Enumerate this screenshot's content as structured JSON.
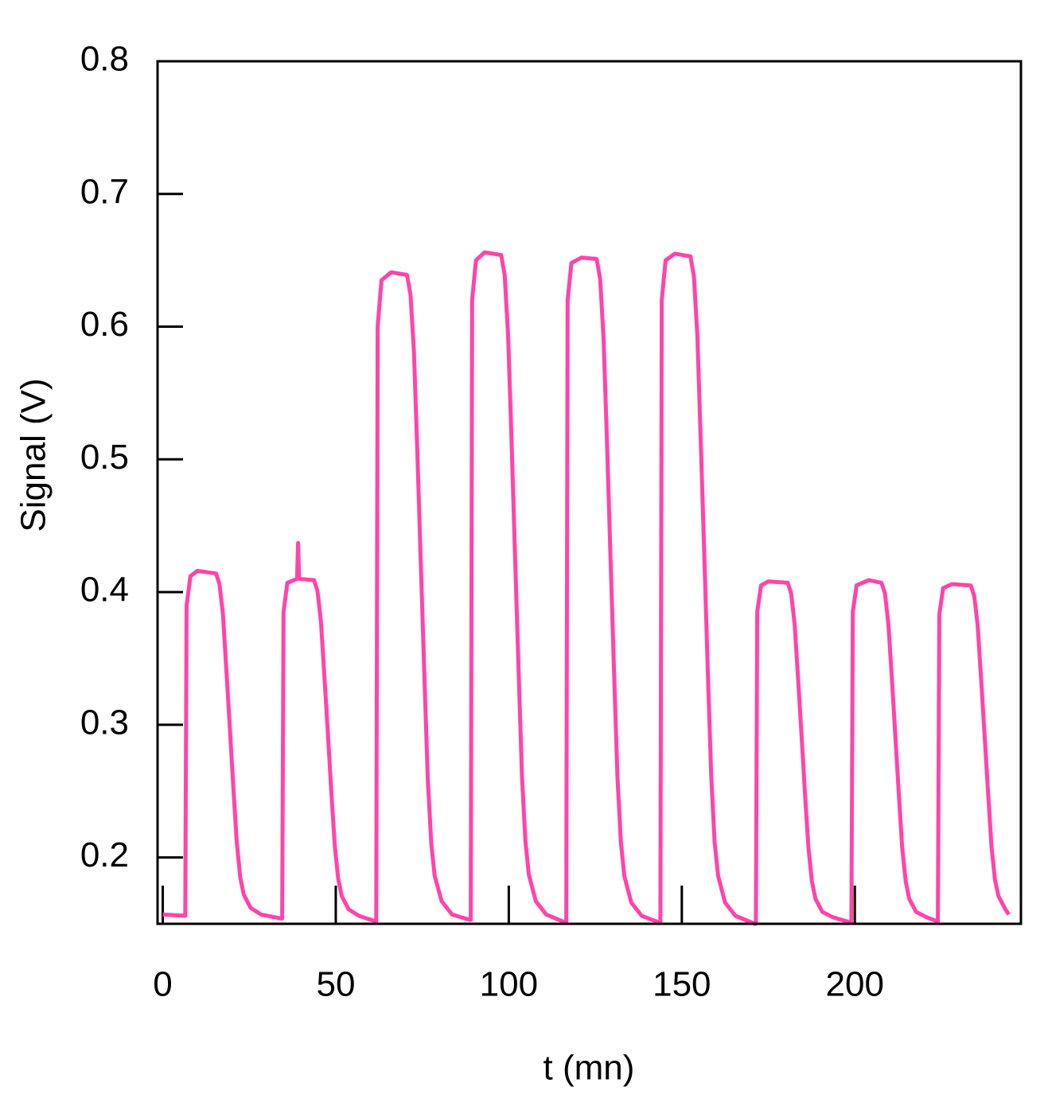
{
  "chart_data": {
    "type": "line",
    "xlabel": "t (mn)",
    "ylabel": "Signal (V)",
    "xlim": [
      -1.5,
      248
    ],
    "ylim": [
      0.15,
      0.8
    ],
    "xticks": [
      0,
      50,
      100,
      150,
      200
    ],
    "yticks": [
      0.2,
      0.3,
      0.4,
      0.5,
      0.6,
      0.7,
      0.8
    ],
    "series": [
      {
        "color": "#ff44aa",
        "x": [
          0,
          6.5,
          6.9,
          8,
          10,
          15.4,
          16.4,
          17.4,
          18.4,
          19.4,
          20.4,
          21.4,
          22.4,
          23.4,
          25.4,
          28.4,
          34.2,
          34.5,
          34.9,
          36,
          38.8,
          39.1,
          39.4,
          43.7,
          44.7,
          45.7,
          46.7,
          47.7,
          48.7,
          49.7,
          50.7,
          51.7,
          53.7,
          56.7,
          61.4,
          61.7,
          62.1,
          63.2,
          66,
          70.6,
          71.6,
          72.6,
          73.6,
          74.6,
          75.6,
          76.6,
          77.6,
          78.6,
          80.6,
          83.6,
          88.7,
          89,
          89.4,
          90.5,
          93,
          97.8,
          98.8,
          99.8,
          100.8,
          101.8,
          102.8,
          103.8,
          104.8,
          105.8,
          107.8,
          110.8,
          116.3,
          116.6,
          117,
          118.1,
          121,
          125.4,
          126.4,
          127.4,
          128.4,
          129.4,
          130.4,
          131.4,
          132.4,
          133.4,
          135.4,
          138.4,
          143.5,
          143.8,
          144.2,
          145.3,
          148,
          152.5,
          153.5,
          154.5,
          155.5,
          156.5,
          157.5,
          158.5,
          159.5,
          160.5,
          162.5,
          165.5,
          171.1,
          171.4,
          171.8,
          172.9,
          175,
          180.6,
          181.6,
          182.6,
          183.6,
          184.6,
          185.6,
          186.6,
          187.6,
          188.6,
          190.6,
          193.6,
          198.7,
          199,
          199.4,
          200.5,
          204,
          207.7,
          208.7,
          209.7,
          210.7,
          211.7,
          212.7,
          213.7,
          214.7,
          215.7,
          217.7,
          220.7,
          223.7,
          224,
          224.4,
          225.5,
          228,
          233.5,
          234.5,
          235.5,
          236.5,
          237.5,
          238.5,
          239.5,
          240.5,
          241.5,
          243.5,
          244.5
        ],
        "values": [
          0.157,
          0.156,
          0.39,
          0.412,
          0.416,
          0.414,
          0.406,
          0.383,
          0.341,
          0.297,
          0.253,
          0.211,
          0.185,
          0.172,
          0.162,
          0.157,
          0.154,
          0.154,
          0.385,
          0.407,
          0.41,
          0.437,
          0.41,
          0.409,
          0.401,
          0.378,
          0.337,
          0.294,
          0.25,
          0.209,
          0.184,
          0.171,
          0.161,
          0.156,
          0.152,
          0.152,
          0.6,
          0.635,
          0.641,
          0.639,
          0.624,
          0.581,
          0.503,
          0.42,
          0.337,
          0.259,
          0.21,
          0.186,
          0.167,
          0.157,
          0.153,
          0.153,
          0.62,
          0.65,
          0.656,
          0.654,
          0.639,
          0.594,
          0.513,
          0.428,
          0.343,
          0.262,
          0.212,
          0.187,
          0.167,
          0.157,
          0.151,
          0.151,
          0.62,
          0.648,
          0.652,
          0.651,
          0.636,
          0.591,
          0.511,
          0.426,
          0.341,
          0.261,
          0.211,
          0.186,
          0.166,
          0.156,
          0.151,
          0.151,
          0.62,
          0.65,
          0.655,
          0.653,
          0.638,
          0.593,
          0.512,
          0.427,
          0.342,
          0.261,
          0.211,
          0.186,
          0.166,
          0.156,
          0.15,
          0.15,
          0.385,
          0.405,
          0.408,
          0.407,
          0.399,
          0.376,
          0.335,
          0.292,
          0.248,
          0.207,
          0.182,
          0.169,
          0.159,
          0.155,
          0.151,
          0.151,
          0.385,
          0.405,
          0.409,
          0.407,
          0.399,
          0.376,
          0.335,
          0.292,
          0.248,
          0.207,
          0.182,
          0.169,
          0.159,
          0.155,
          0.152,
          0.152,
          0.383,
          0.403,
          0.406,
          0.405,
          0.397,
          0.375,
          0.334,
          0.292,
          0.249,
          0.208,
          0.183,
          0.171,
          0.161,
          0.157
        ]
      }
    ]
  }
}
